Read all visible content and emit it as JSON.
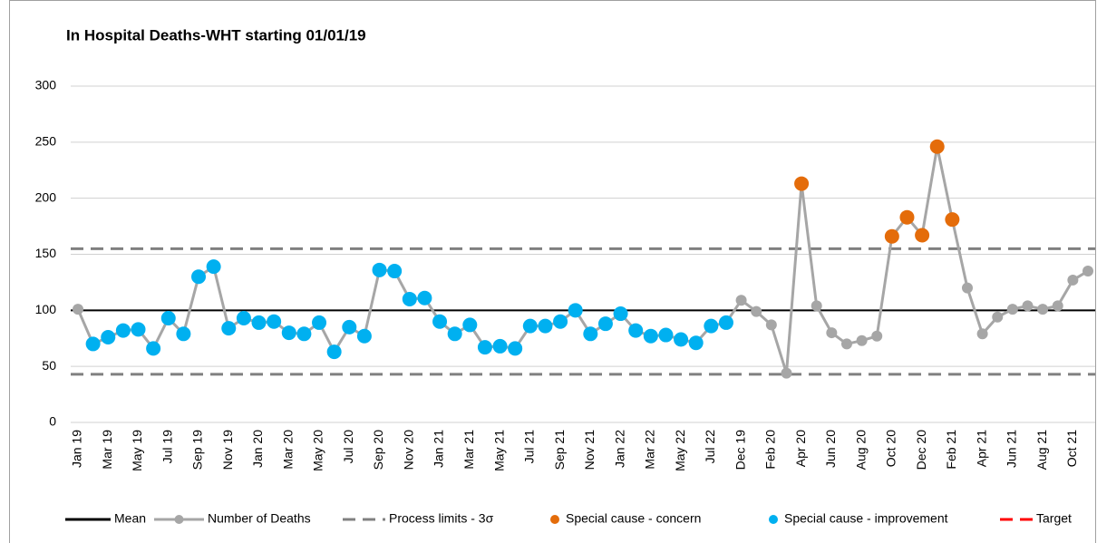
{
  "chart_data": {
    "type": "line",
    "title": "In Hospital Deaths-WHT starting 01/01/19",
    "categories": [
      "Jan 19",
      null,
      "Mar 19",
      null,
      "May 19",
      null,
      "Jul 19",
      null,
      "Sep 19",
      null,
      "Nov 19",
      null,
      "Jan 20",
      null,
      "Mar 20",
      null,
      "May 20",
      null,
      "Jul 20",
      null,
      "Sep 20",
      null,
      "Nov 20",
      null,
      "Jan 21",
      null,
      "Mar 21",
      null,
      "May 21",
      null,
      "Jul 21",
      null,
      "Sep 21",
      null,
      "Nov 21",
      null,
      "Jan 22",
      null,
      "Mar 22",
      null,
      "May 22",
      null,
      "Jul 22",
      null,
      "Dec 19",
      null,
      "Feb 20",
      null,
      "Apr 20",
      null,
      "Jun 20",
      null,
      "Aug 20",
      null,
      "Oct 20",
      null,
      "Dec 20",
      null,
      "Feb 21",
      null,
      "Apr 21",
      null,
      "Jun 21",
      null,
      "Aug 21",
      null,
      "Oct 21",
      null
    ],
    "series": [
      {
        "name": "Number of Deaths",
        "color": "#a6a6a6",
        "markers_only": false,
        "values": [
          101,
          70,
          76,
          82,
          83,
          66,
          93,
          79,
          130,
          139,
          84,
          93,
          89,
          90,
          80,
          79,
          89,
          63,
          85,
          77,
          136,
          135,
          110,
          111,
          90,
          79,
          87,
          67,
          68,
          66,
          86,
          86,
          90,
          100,
          79,
          88,
          97,
          82,
          77,
          78,
          74,
          71,
          86,
          89,
          109,
          99,
          87,
          44,
          213,
          104,
          80,
          70,
          73,
          77,
          166,
          183,
          167,
          246,
          181,
          120,
          79,
          94,
          101,
          104,
          101,
          104,
          127,
          135
        ]
      },
      {
        "name": "Special cause - concern",
        "color": "#e46c0a",
        "markers_only": true,
        "values": [
          null,
          null,
          null,
          null,
          null,
          null,
          null,
          null,
          null,
          null,
          null,
          null,
          null,
          null,
          null,
          null,
          null,
          null,
          null,
          null,
          null,
          null,
          null,
          null,
          null,
          null,
          null,
          null,
          null,
          null,
          null,
          null,
          null,
          null,
          null,
          null,
          null,
          null,
          null,
          null,
          null,
          null,
          null,
          null,
          null,
          null,
          null,
          null,
          213,
          null,
          null,
          null,
          null,
          null,
          166,
          183,
          167,
          246,
          181,
          null,
          null,
          null,
          null,
          null,
          null,
          null,
          null,
          null
        ]
      },
      {
        "name": "Special cause  - improvement",
        "color": "#00b0f0",
        "markers_only": true,
        "values": [
          null,
          70,
          76,
          82,
          83,
          66,
          93,
          79,
          130,
          139,
          84,
          93,
          89,
          90,
          80,
          79,
          89,
          63,
          85,
          77,
          136,
          135,
          110,
          111,
          90,
          79,
          87,
          67,
          68,
          66,
          86,
          86,
          90,
          100,
          79,
          88,
          97,
          82,
          77,
          78,
          74,
          71,
          86,
          89,
          null,
          null,
          null,
          null,
          null,
          null,
          null,
          null,
          null,
          null,
          null,
          null,
          null,
          null,
          null,
          null,
          null,
          null,
          null,
          null,
          null,
          null,
          null,
          null
        ]
      }
    ],
    "reference_lines": [
      {
        "name": "Mean",
        "color": "#000000",
        "dashed": false,
        "values": [
          100
        ]
      },
      {
        "name": "Process limits - 3σ",
        "color": "#808080",
        "dashed": true,
        "values": [
          43,
          155
        ]
      },
      {
        "name": "Target",
        "color": "#ff0000",
        "dashed": true,
        "values": []
      }
    ],
    "ylim": [
      0,
      300
    ],
    "yticks": [
      0,
      50,
      100,
      150,
      200,
      250,
      300
    ],
    "grid": true
  }
}
